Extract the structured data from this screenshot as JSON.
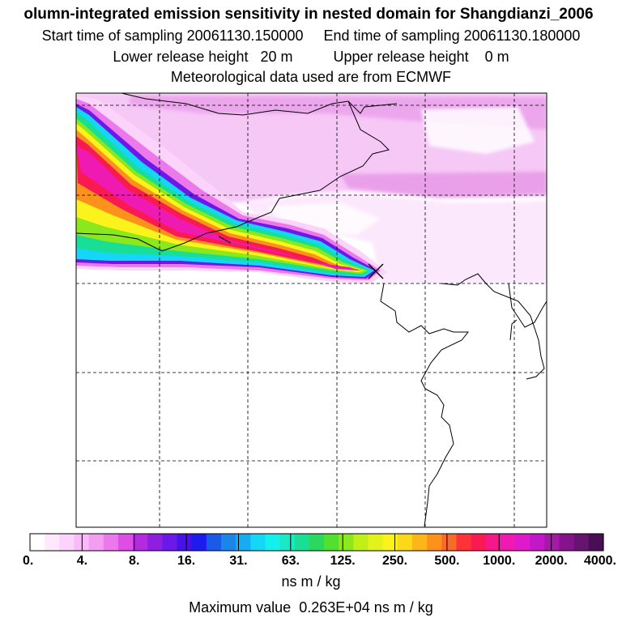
{
  "header": {
    "title": "olumn-integrated emission sensitivity in nested domain for Shangdianzi_2006",
    "start_label": "Start time of sampling",
    "start_value": "20061130.150000",
    "end_label": "End time of sampling",
    "end_value": "20061130.180000",
    "lower_label": "Lower release height",
    "lower_value": "20 m",
    "upper_label": "Upper release height",
    "upper_value": "0 m",
    "met_text": "Meteorological data used are from ECMWF"
  },
  "legend": {
    "colors": [
      "#ffffff",
      "#fde8fd",
      "#fbd3fb",
      "#f7bcf7",
      "#f39ef3",
      "#ec78ec",
      "#dd4ee6",
      "#b42ae0",
      "#8f1fe0",
      "#6a19e8",
      "#4712e6",
      "#1c1cf0",
      "#1a5ae8",
      "#1b86e8",
      "#14aef0",
      "#14d6f6",
      "#14f0ec",
      "#1ae8c4",
      "#18de96",
      "#2ad860",
      "#52e030",
      "#8ae81c",
      "#c0f01a",
      "#e4f21c",
      "#fcf21c",
      "#fcd81a",
      "#fcb61a",
      "#fc921c",
      "#fc6a2a",
      "#fc3438",
      "#fa1a52",
      "#f4188a",
      "#ee1ab2",
      "#de1aca",
      "#c418c8",
      "#a518a8",
      "#85148a",
      "#661470",
      "#4a0e56"
    ],
    "ticks": [
      "0.",
      "4.",
      "8.",
      "16.",
      "31.",
      "63.",
      "125.",
      "250.",
      "500.",
      "1000.",
      "2000.",
      "4000."
    ],
    "units": "ns m / kg",
    "max_label": "Maximum value",
    "max_value": "0.263E+04 ns m / kg"
  },
  "map": {
    "receptor_marker": "x-marker",
    "plume_colors": [
      "#ffffff",
      "#fbd3fb",
      "#ec78ec",
      "#6a19e8",
      "#14d6f6",
      "#18de96",
      "#8ae81c",
      "#fcf21c",
      "#fc921c",
      "#fa1a52",
      "#ee1ab2"
    ]
  }
}
